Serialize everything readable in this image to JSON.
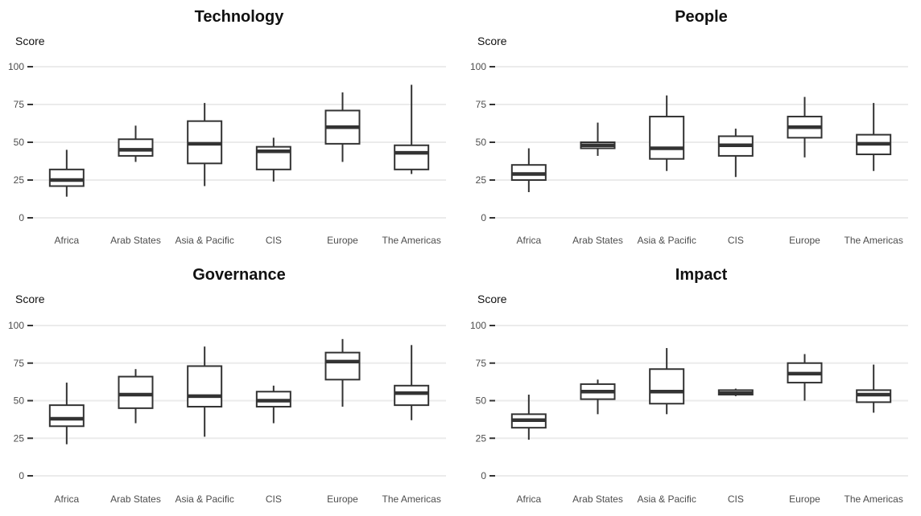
{
  "chart_data": [
    {
      "type": "boxplot",
      "title": "Technology",
      "ylabel": "Score",
      "xlabel": "",
      "ylim": [
        0,
        100
      ],
      "yticks": [
        "0",
        "25",
        "50",
        "75",
        "100"
      ],
      "categories": [
        "Africa",
        "Arab States",
        "Asia & Pacific",
        "CIS",
        "Europe",
        "The Americas"
      ],
      "boxes": [
        {
          "min": 14,
          "q1": 21,
          "median": 25,
          "q3": 32,
          "max": 45
        },
        {
          "min": 37,
          "q1": 41,
          "median": 45,
          "q3": 52,
          "max": 61
        },
        {
          "min": 21,
          "q1": 36,
          "median": 49,
          "q3": 64,
          "max": 76
        },
        {
          "min": 24,
          "q1": 32,
          "median": 44,
          "q3": 47,
          "max": 53
        },
        {
          "min": 37,
          "q1": 49,
          "median": 60,
          "q3": 71,
          "max": 83
        },
        {
          "min": 29,
          "q1": 32,
          "median": 43,
          "q3": 48,
          "max": 88
        }
      ]
    },
    {
      "type": "boxplot",
      "title": "People",
      "ylabel": "Score",
      "xlabel": "",
      "ylim": [
        0,
        100
      ],
      "yticks": [
        "0",
        "25",
        "50",
        "75",
        "100"
      ],
      "categories": [
        "Africa",
        "Arab States",
        "Asia & Pacific",
        "CIS",
        "Europe",
        "The Americas"
      ],
      "boxes": [
        {
          "min": 17,
          "q1": 25,
          "median": 29,
          "q3": 35,
          "max": 46
        },
        {
          "min": 41,
          "q1": 46,
          "median": 48,
          "q3": 50,
          "max": 63
        },
        {
          "min": 31,
          "q1": 39,
          "median": 46,
          "q3": 67,
          "max": 81
        },
        {
          "min": 27,
          "q1": 41,
          "median": 48,
          "q3": 54,
          "max": 59
        },
        {
          "min": 40,
          "q1": 53,
          "median": 60,
          "q3": 67,
          "max": 80
        },
        {
          "min": 31,
          "q1": 42,
          "median": 49,
          "q3": 55,
          "max": 76
        }
      ]
    },
    {
      "type": "boxplot",
      "title": "Governance",
      "ylabel": "Score",
      "xlabel": "",
      "ylim": [
        0,
        100
      ],
      "yticks": [
        "0",
        "25",
        "50",
        "75",
        "100"
      ],
      "categories": [
        "Africa",
        "Arab States",
        "Asia & Pacific",
        "CIS",
        "Europe",
        "The Americas"
      ],
      "boxes": [
        {
          "min": 21,
          "q1": 33,
          "median": 38,
          "q3": 47,
          "max": 62
        },
        {
          "min": 35,
          "q1": 45,
          "median": 54,
          "q3": 66,
          "max": 71
        },
        {
          "min": 26,
          "q1": 46,
          "median": 53,
          "q3": 73,
          "max": 86
        },
        {
          "min": 35,
          "q1": 46,
          "median": 50,
          "q3": 56,
          "max": 60
        },
        {
          "min": 46,
          "q1": 64,
          "median": 76,
          "q3": 82,
          "max": 91
        },
        {
          "min": 37,
          "q1": 47,
          "median": 55,
          "q3": 60,
          "max": 87
        }
      ]
    },
    {
      "type": "boxplot",
      "title": "Impact",
      "ylabel": "Score",
      "xlabel": "",
      "ylim": [
        0,
        100
      ],
      "yticks": [
        "0",
        "25",
        "50",
        "75",
        "100"
      ],
      "categories": [
        "Africa",
        "Arab States",
        "Asia & Pacific",
        "CIS",
        "Europe",
        "The Americas"
      ],
      "boxes": [
        {
          "min": 24,
          "q1": 32,
          "median": 37,
          "q3": 41,
          "max": 54
        },
        {
          "min": 41,
          "q1": 51,
          "median": 56,
          "q3": 61,
          "max": 64
        },
        {
          "min": 41,
          "q1": 48,
          "median": 56,
          "q3": 71,
          "max": 85
        },
        {
          "min": 53,
          "q1": 54,
          "median": 55,
          "q3": 57,
          "max": 58
        },
        {
          "min": 50,
          "q1": 62,
          "median": 68,
          "q3": 75,
          "max": 81
        },
        {
          "min": 42,
          "q1": 49,
          "median": 54,
          "q3": 57,
          "max": 74
        }
      ]
    }
  ]
}
